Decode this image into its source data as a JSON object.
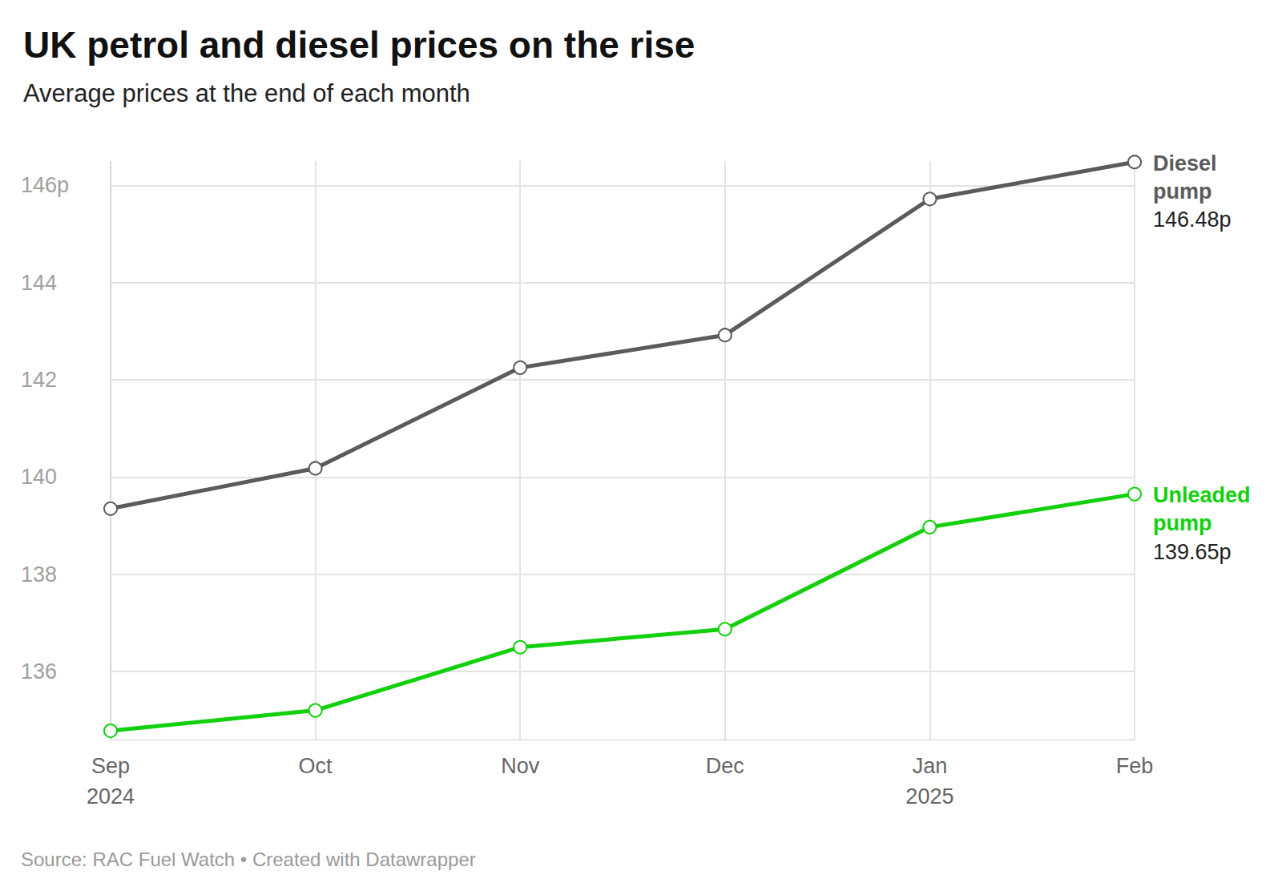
{
  "chart_data": {
    "type": "line",
    "title": "UK petrol and diesel prices on the rise",
    "subtitle": "Average prices at the end of each month",
    "source": "Source: RAC Fuel Watch • Created with Datawrapper",
    "categories": [
      "Sep 2024",
      "Oct",
      "Nov",
      "Dec",
      "Jan 2025",
      "Feb"
    ],
    "series": [
      {
        "name": "Diesel pump",
        "color": "#5b5b5b",
        "marker": "hollow circle",
        "values": [
          139.35,
          140.18,
          142.25,
          142.92,
          145.72,
          146.48
        ],
        "value_labels": [
          null,
          null,
          null,
          null,
          null,
          "146.48p"
        ]
      },
      {
        "name": "Unleaded pump",
        "color": "#12d10c",
        "marker": "hollow circle",
        "values": [
          134.78,
          135.2,
          136.5,
          136.87,
          138.97,
          139.65
        ],
        "value_labels": [
          null,
          null,
          null,
          null,
          null,
          "139.65p"
        ]
      }
    ],
    "ylim": [
      134.6,
      146.5
    ],
    "yticks": [
      136,
      138,
      140,
      142,
      144,
      {
        "value": 146,
        "label": "146p"
      }
    ],
    "grid": true
  }
}
